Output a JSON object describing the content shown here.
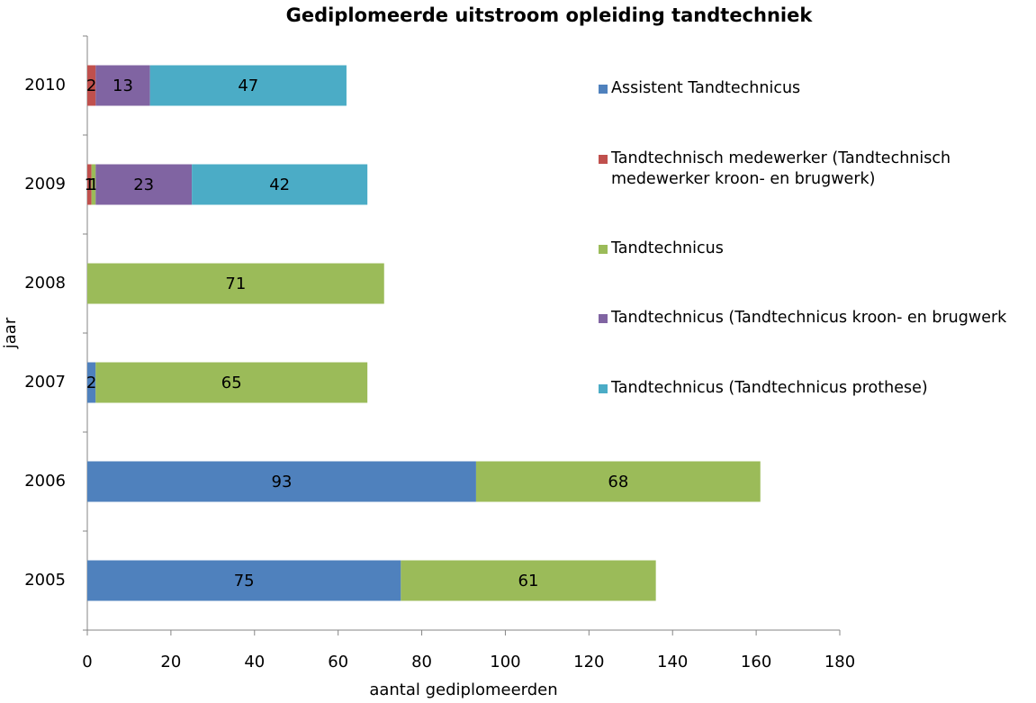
{
  "chart_data": {
    "type": "bar",
    "orientation": "horizontal",
    "stacked": true,
    "title": "Gediplomeerde uitstroom opleiding tandtechniek",
    "xlabel": "aantal gediplomeerden",
    "ylabel": "jaar",
    "categories": [
      "2005",
      "2006",
      "2007",
      "2008",
      "2009",
      "2010"
    ],
    "series": [
      {
        "name": "Assistent Tandtechnicus",
        "color": "#4f81bd",
        "values": [
          75,
          93,
          2,
          null,
          null,
          null
        ]
      },
      {
        "name": "Tandtechnisch medewerker (Tandtechnisch medewerker kroon- en brugwerk)",
        "color": "#c0504d",
        "values": [
          null,
          null,
          null,
          null,
          1,
          2
        ]
      },
      {
        "name": "Tandtechnicus",
        "color": "#9bbb59",
        "values": [
          61,
          68,
          65,
          71,
          1,
          null
        ]
      },
      {
        "name": "Tandtechnicus (Tandtechnicus kroon- en brugwerk",
        "color": "#8064a2",
        "values": [
          null,
          null,
          null,
          null,
          23,
          13
        ]
      },
      {
        "name": "Tandtechnicus (Tandtechnicus prothese)",
        "color": "#4bacc6",
        "values": [
          null,
          null,
          null,
          null,
          42,
          47
        ]
      }
    ],
    "xlim": [
      0,
      180
    ],
    "xticks": [
      0,
      20,
      40,
      60,
      80,
      100,
      120,
      140,
      160,
      180
    ],
    "legend": "right"
  }
}
